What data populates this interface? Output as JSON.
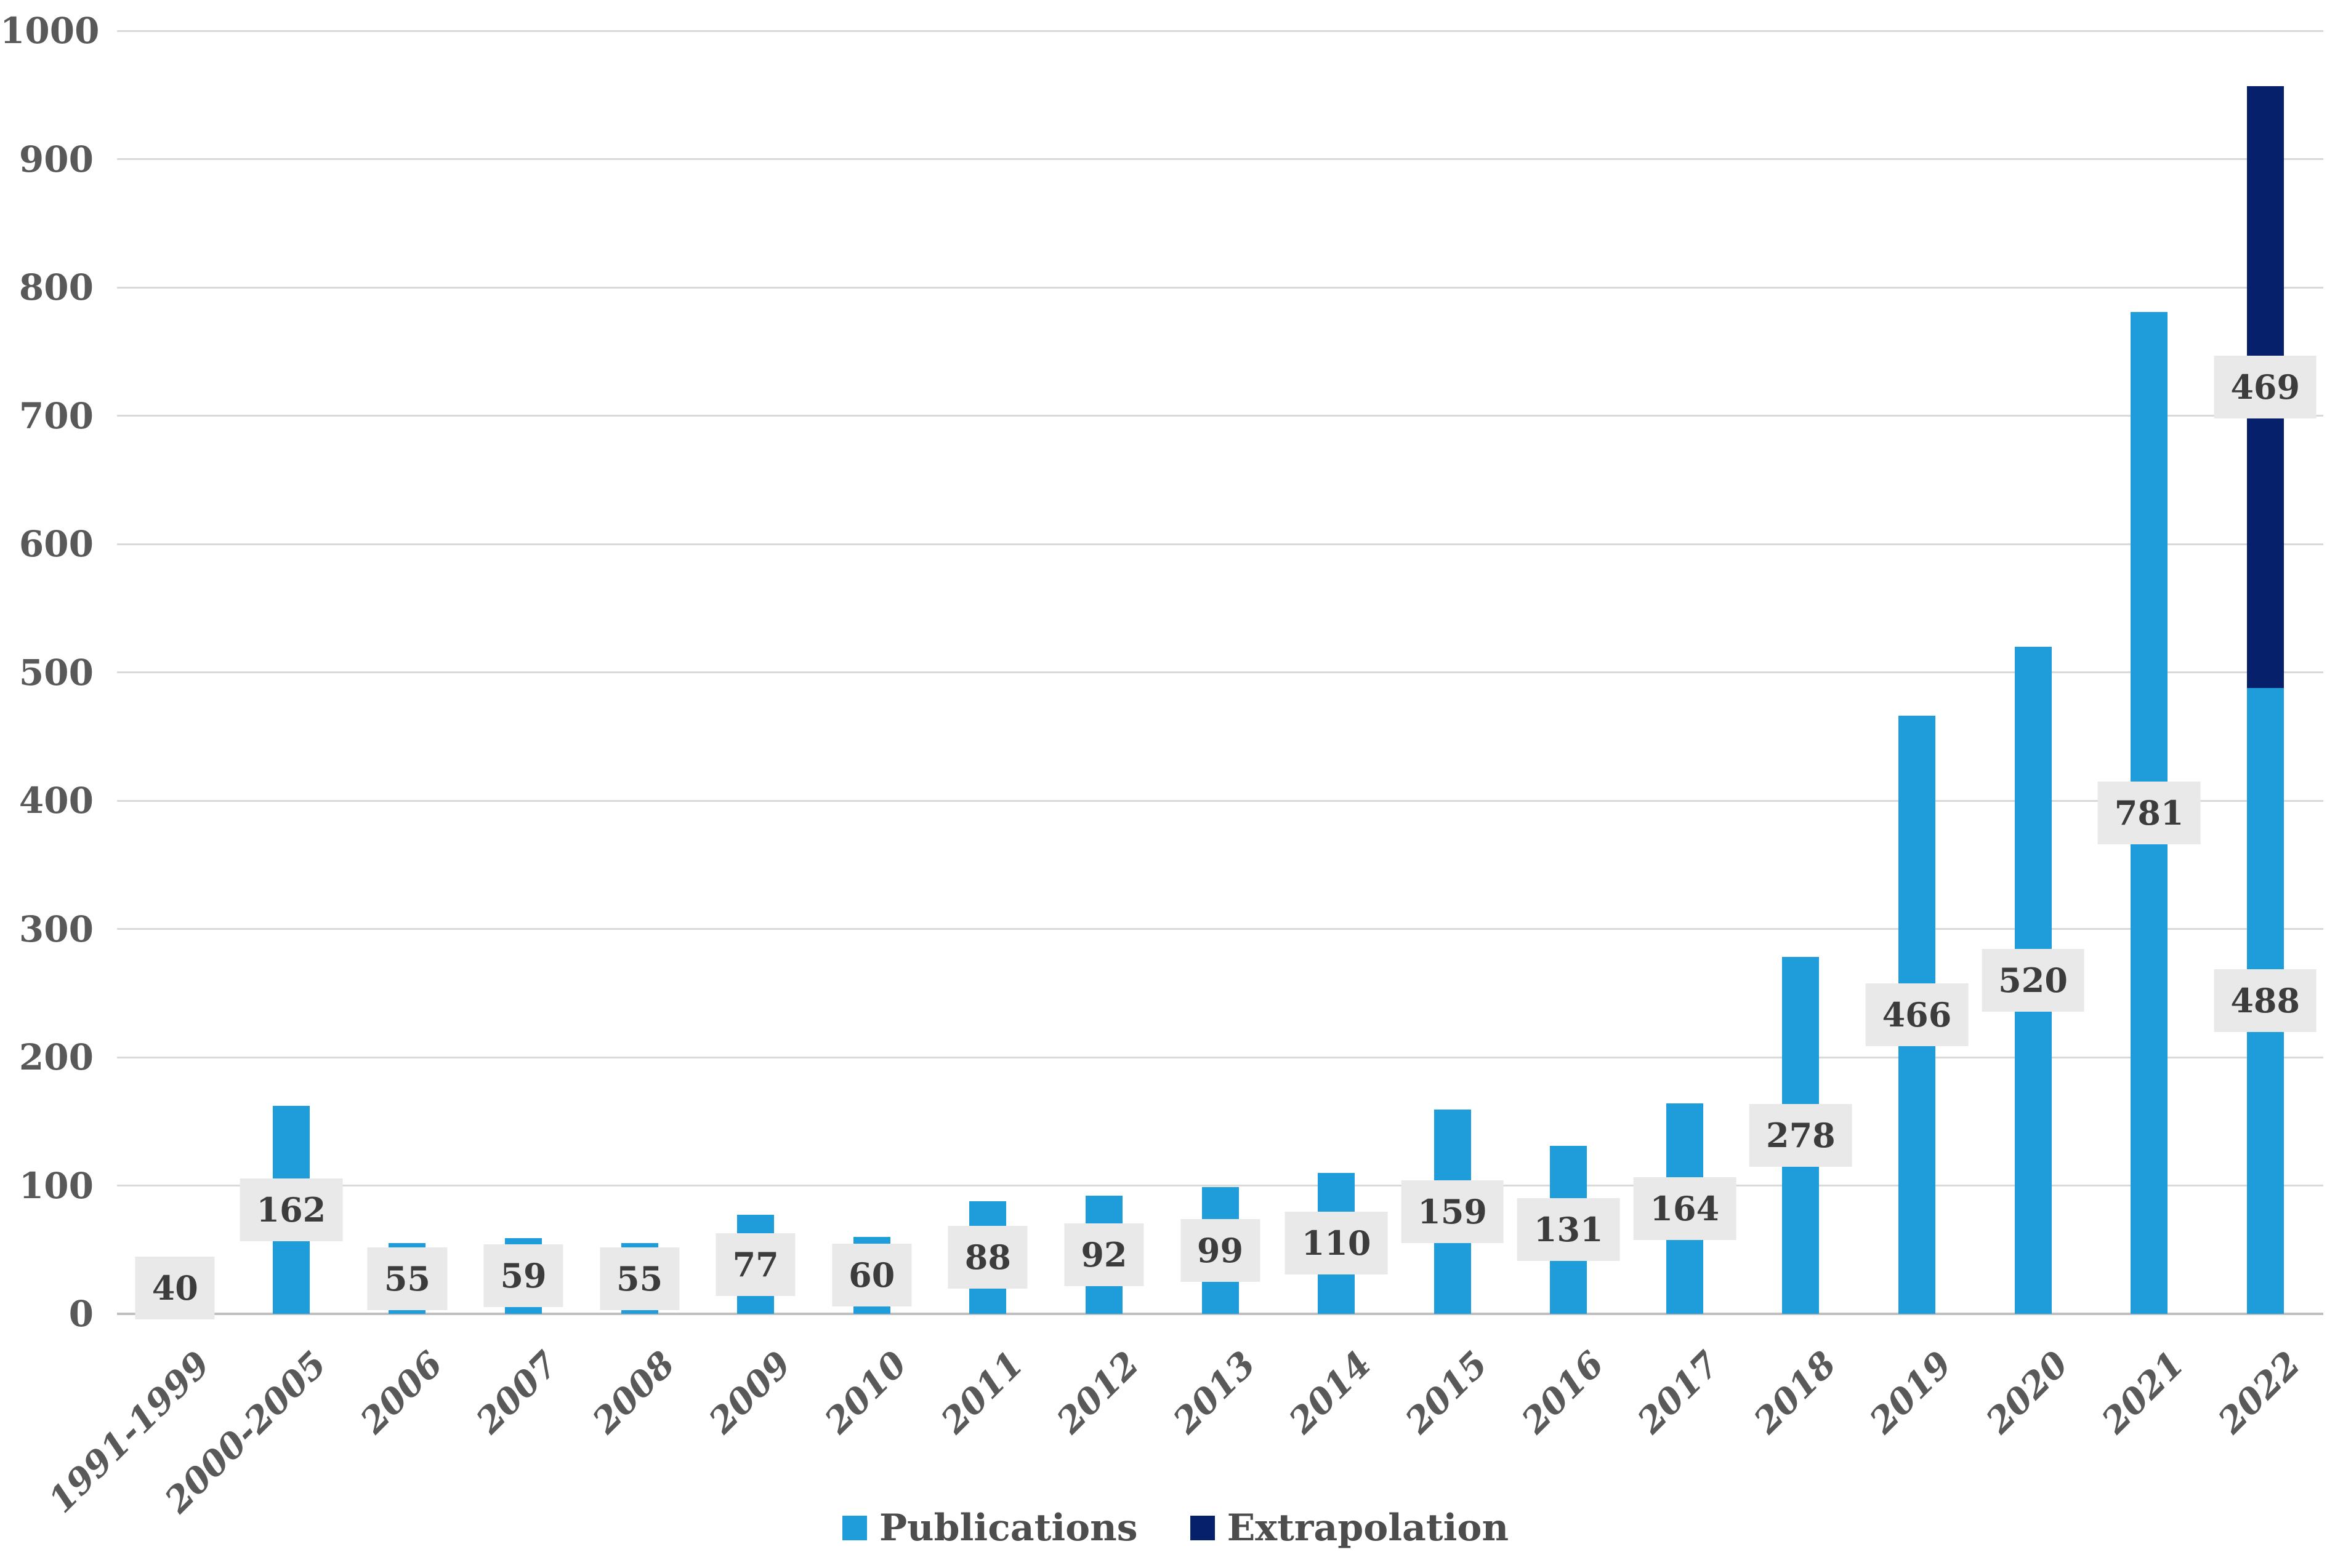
{
  "chart_data": {
    "type": "bar",
    "stacked": true,
    "title": "",
    "xlabel": "",
    "ylabel": "",
    "categories": [
      "1991-1999",
      "2000-2005",
      "2006",
      "2007",
      "2008",
      "2009",
      "2010",
      "2011",
      "2012",
      "2013",
      "2014",
      "2015",
      "2016",
      "2017",
      "2018",
      "2019",
      "2020",
      "2021",
      "2022"
    ],
    "series": [
      {
        "name": "Publications",
        "color": "#1f9dda",
        "values": [
          40,
          162,
          55,
          59,
          55,
          77,
          60,
          88,
          92,
          99,
          110,
          159,
          131,
          164,
          278,
          466,
          520,
          781,
          488
        ]
      },
      {
        "name": "Extrapolation",
        "color": "#06206b",
        "values": [
          0,
          0,
          0,
          0,
          0,
          0,
          0,
          0,
          0,
          0,
          0,
          0,
          0,
          0,
          0,
          0,
          0,
          0,
          469
        ]
      }
    ],
    "data_labels_shown": true,
    "ylim": [
      0,
      1000
    ],
    "ytick_interval": 100,
    "yticks": [
      "0",
      "100",
      "200",
      "300",
      "400",
      "500",
      "600",
      "700",
      "800",
      "900",
      "1000"
    ],
    "grid": true,
    "legend_position": "bottom",
    "colors": {
      "gridline": "#d9d9d9",
      "zero_line": "#bfbfbf",
      "axis_text": "#595959",
      "data_label_background": "#e9e9e9",
      "data_label_text": "#3c3c3c",
      "legend_text": "#4d4d4d"
    }
  }
}
